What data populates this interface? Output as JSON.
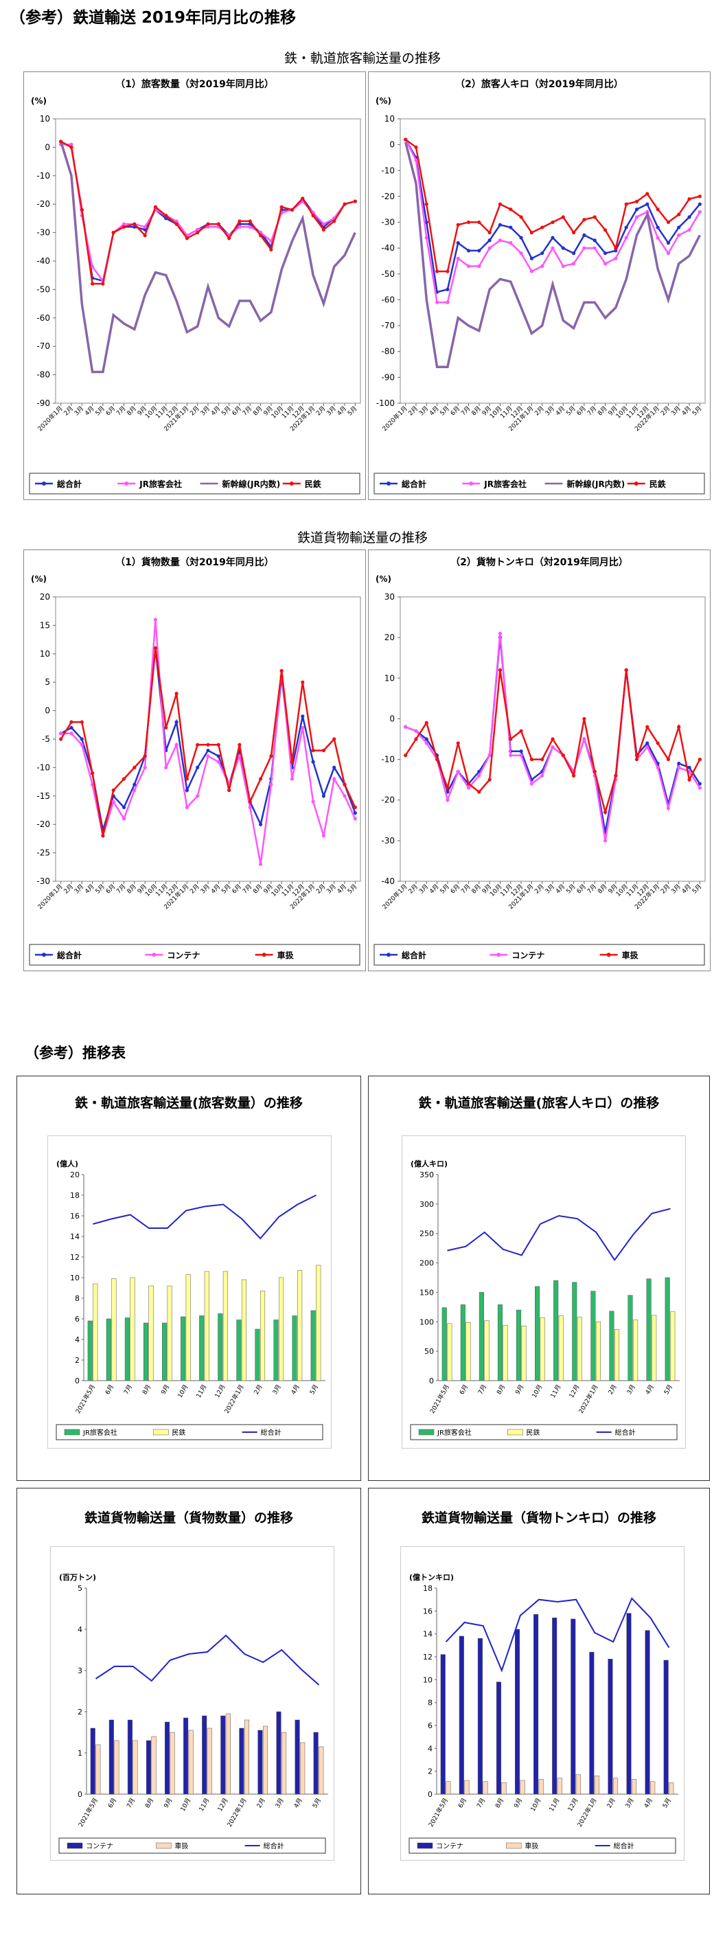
{
  "page_title": "（参考）鉄道輸送 2019年同月比の推移",
  "passenger_section_title": "鉄・軌道旅客輸送量の推移",
  "freight_section_title": "鉄道貨物輸送量の推移",
  "reference_title": "（参考）推移表",
  "colors": {
    "blue": "#2233cc",
    "pink": "#ff55ff",
    "purple": "#8866aa",
    "red": "#ee1111",
    "green": "#2eb86a",
    "cream": "#ffff99",
    "navy": "#2222aa",
    "peach": "#ffd9bb"
  },
  "chart_data": [
    {
      "id": "p1",
      "type": "line",
      "title": "（1）旅客数量（対2019年同月比）",
      "ylabel": "(%)",
      "ylim": [
        -90,
        10
      ],
      "ystep": 10,
      "categories": [
        "2020年1月",
        "2月",
        "3月",
        "4月",
        "5月",
        "6月",
        "7月",
        "8月",
        "9月",
        "10月",
        "11月",
        "12月",
        "2021年1月",
        "2月",
        "3月",
        "4月",
        "5月",
        "6月",
        "7月",
        "8月",
        "9月",
        "10月",
        "11月",
        "12月",
        "2022年1月",
        "2月",
        "3月",
        "4月",
        "5月"
      ],
      "series": [
        {
          "name": "総合計",
          "color": "#2233cc",
          "marker": true,
          "values": [
            2,
            0,
            -22,
            -46,
            -47,
            -30,
            -28,
            -28,
            -29,
            -22,
            -25,
            -27,
            -31,
            -29,
            -27,
            -27,
            -31,
            -27,
            -27,
            -30,
            -35,
            -22,
            -22,
            -18,
            -23,
            -28,
            -25,
            -20,
            -19
          ]
        },
        {
          "name": "JR旅客会社",
          "color": "#ff55ff",
          "marker": true,
          "values": [
            1,
            1,
            -24,
            -42,
            -47,
            -30,
            -27,
            -27,
            -28,
            -22,
            -24,
            -26,
            -31,
            -29,
            -28,
            -28,
            -31,
            -28,
            -28,
            -30,
            -33,
            -23,
            -22,
            -19,
            -23,
            -27,
            -25,
            -20,
            -19
          ]
        },
        {
          "name": "新幹線(JR内数)",
          "color": "#8866aa",
          "marker": false,
          "values": [
            2,
            -10,
            -55,
            -79,
            -79,
            -59,
            -62,
            -64,
            -52,
            -44,
            -45,
            -54,
            -65,
            -63,
            -49,
            -60,
            -63,
            -54,
            -54,
            -61,
            -58,
            -43,
            -33,
            -25,
            -45,
            -55,
            -42,
            -38,
            -30
          ]
        },
        {
          "name": "民鉄",
          "color": "#ee1111",
          "marker": true,
          "values": [
            2,
            0,
            -22,
            -48,
            -48,
            -30,
            -28,
            -27,
            -31,
            -21,
            -24,
            -27,
            -32,
            -30,
            -27,
            -27,
            -32,
            -26,
            -26,
            -31,
            -36,
            -21,
            -22,
            -18,
            -24,
            -29,
            -26,
            -20,
            -19
          ]
        }
      ]
    },
    {
      "id": "p2",
      "type": "line",
      "title": "（2）旅客人キロ（対2019年同月比）",
      "ylabel": "(%)",
      "ylim": [
        -100,
        10
      ],
      "ystep": 10,
      "categories": [
        "2020年1月",
        "2月",
        "3月",
        "4月",
        "5月",
        "6月",
        "7月",
        "8月",
        "9月",
        "10月",
        "11月",
        "12月",
        "2021年1月",
        "2月",
        "3月",
        "4月",
        "5月",
        "6月",
        "7月",
        "8月",
        "9月",
        "10月",
        "11月",
        "12月",
        "2022年1月",
        "2月",
        "3月",
        "4月",
        "5月"
      ],
      "series": [
        {
          "name": "総合計",
          "color": "#2233cc",
          "marker": true,
          "values": [
            2,
            -5,
            -30,
            -57,
            -56,
            -38,
            -41,
            -41,
            -37,
            -31,
            -32,
            -36,
            -44,
            -42,
            -36,
            -40,
            -42,
            -35,
            -37,
            -42,
            -41,
            -32,
            -25,
            -23,
            -32,
            -38,
            -32,
            -28,
            -23
          ]
        },
        {
          "name": "JR旅客会社",
          "color": "#ff55ff",
          "marker": true,
          "values": [
            2,
            -6,
            -36,
            -61,
            -61,
            -44,
            -47,
            -47,
            -40,
            -37,
            -38,
            -42,
            -49,
            -47,
            -40,
            -47,
            -46,
            -40,
            -40,
            -46,
            -44,
            -36,
            -28,
            -26,
            -36,
            -42,
            -35,
            -33,
            -26
          ]
        },
        {
          "name": "新幹線(JR内数)",
          "color": "#8866aa",
          "marker": false,
          "values": [
            1,
            -15,
            -60,
            -86,
            -86,
            -67,
            -70,
            -72,
            -56,
            -52,
            -53,
            -63,
            -73,
            -70,
            -54,
            -68,
            -71,
            -61,
            -61,
            -67,
            -63,
            -52,
            -35,
            -27,
            -48,
            -60,
            -46,
            -43,
            -35
          ]
        },
        {
          "name": "民鉄",
          "color": "#ee1111",
          "marker": true,
          "values": [
            2,
            -1,
            -23,
            -49,
            -49,
            -31,
            -30,
            -30,
            -34,
            -23,
            -25,
            -28,
            -34,
            -32,
            -30,
            -28,
            -34,
            -29,
            -28,
            -33,
            -40,
            -23,
            -22,
            -19,
            -25,
            -30,
            -27,
            -21,
            -20
          ]
        }
      ]
    },
    {
      "id": "f1",
      "type": "line",
      "title": "（1）貨物数量（対2019年同月比）",
      "ylabel": "(%)",
      "ylim": [
        -30,
        20
      ],
      "ystep": 5,
      "categories": [
        "2020年1月",
        "2月",
        "3月",
        "4月",
        "5月",
        "6月",
        "7月",
        "8月",
        "9月",
        "10月",
        "11月",
        "12月",
        "2021年1月",
        "2月",
        "3月",
        "4月",
        "5月",
        "6月",
        "7月",
        "8月",
        "9月",
        "10月",
        "11月",
        "12月",
        "2022年1月",
        "2月",
        "3月",
        "4月",
        "5月"
      ],
      "series": [
        {
          "name": "総合計",
          "color": "#2233cc",
          "marker": true,
          "values": [
            -4,
            -3,
            -5,
            -11,
            -21,
            -15,
            -17,
            -13,
            -8,
            11,
            -7,
            -2,
            -14,
            -10,
            -7,
            -8,
            -13,
            -7,
            -16,
            -20,
            -12,
            6,
            -10,
            -1,
            -9,
            -15,
            -10,
            -13,
            -18
          ]
        },
        {
          "name": "コンテナ",
          "color": "#ff55ff",
          "marker": true,
          "values": [
            -4,
            -4,
            -6,
            -13,
            -22,
            -16,
            -19,
            -14,
            -10,
            16,
            -10,
            -6,
            -17,
            -15,
            -8,
            -9,
            -13,
            -8,
            -17,
            -27,
            -13,
            7,
            -12,
            -3,
            -16,
            -22,
            -12,
            -15,
            -19
          ]
        },
        {
          "name": "車扱",
          "color": "#ee1111",
          "marker": true,
          "values": [
            -5,
            -2,
            -2,
            -11,
            -22,
            -14,
            -12,
            -10,
            -8,
            11,
            -3,
            3,
            -12,
            -6,
            -6,
            -6,
            -14,
            -6,
            -16,
            -12,
            -8,
            7,
            -9,
            5,
            -7,
            -7,
            -5,
            -13,
            -17
          ]
        }
      ]
    },
    {
      "id": "f2",
      "type": "line",
      "title": "（2）貨物トンキロ（対2019年同月比）",
      "ylabel": "(%)",
      "ylim": [
        -40,
        30
      ],
      "ystep": 10,
      "categories": [
        "2020年1月",
        "2月",
        "3月",
        "4月",
        "5月",
        "6月",
        "7月",
        "8月",
        "9月",
        "10月",
        "11月",
        "12月",
        "2021年1月",
        "2月",
        "3月",
        "4月",
        "5月",
        "6月",
        "7月",
        "8月",
        "9月",
        "10月",
        "11月",
        "12月",
        "2022年1月",
        "2月",
        "3月",
        "4月",
        "5月"
      ],
      "series": [
        {
          "name": "総合計",
          "color": "#2233cc",
          "marker": true,
          "values": [
            -2,
            -3,
            -5,
            -9,
            -18,
            -13,
            -16,
            -13,
            -9,
            20,
            -8,
            -8,
            -15,
            -13,
            -7,
            -9,
            -13,
            -5,
            -13,
            -28,
            -14,
            12,
            -9,
            -6,
            -11,
            -21,
            -11,
            -12,
            -16
          ]
        },
        {
          "name": "コンテナ",
          "color": "#ff55ff",
          "marker": true,
          "values": [
            -2,
            -3,
            -6,
            -10,
            -20,
            -13,
            -17,
            -14,
            -9,
            21,
            -9,
            -9,
            -16,
            -14,
            -7,
            -9,
            -13,
            -5,
            -14,
            -30,
            -15,
            12,
            -10,
            -7,
            -12,
            -22,
            -12,
            -13,
            -17
          ]
        },
        {
          "name": "車扱",
          "color": "#ee1111",
          "marker": true,
          "values": [
            -9,
            -5,
            -1,
            -10,
            -17,
            -6,
            -16,
            -18,
            -15,
            12,
            -5,
            -3,
            -10,
            -10,
            -5,
            -9,
            -14,
            0,
            -13,
            -23,
            -14,
            12,
            -10,
            -2,
            -6,
            -10,
            -2,
            -15,
            -10
          ]
        }
      ]
    },
    {
      "id": "r1",
      "type": "bar",
      "panel_title": "鉄・軌道旅客輸送量(旅客数量）の推移",
      "ylabel": "(億人)",
      "ylim": [
        0,
        20
      ],
      "ystep": 2,
      "categories": [
        "2021年5月",
        "6月",
        "7月",
        "8月",
        "9月",
        "10月",
        "11月",
        "12月",
        "2022年1月",
        "2月",
        "3月",
        "4月",
        "5月"
      ],
      "series": [
        {
          "name": "JR旅客会社",
          "kind": "bar",
          "color": "#2eb86a",
          "values": [
            5.8,
            6.0,
            6.1,
            5.6,
            5.6,
            6.2,
            6.3,
            6.5,
            5.9,
            5.0,
            5.9,
            6.3,
            6.8
          ]
        },
        {
          "name": "民鉄",
          "kind": "bar",
          "color": "#ffff99",
          "values": [
            9.4,
            9.9,
            10.0,
            9.2,
            9.2,
            10.3,
            10.6,
            10.6,
            9.8,
            8.7,
            10.0,
            10.7,
            11.2
          ]
        },
        {
          "name": "総合計",
          "kind": "line",
          "color": "#2222cc",
          "values": [
            15.2,
            15.7,
            16.1,
            14.8,
            14.8,
            16.5,
            16.9,
            17.1,
            15.7,
            13.8,
            15.9,
            17.1,
            18.0
          ]
        }
      ]
    },
    {
      "id": "r2",
      "type": "bar",
      "panel_title": "鉄・軌道旅客輸送量(旅客人キロ）の推移",
      "ylabel": "(億人キロ)",
      "ylim": [
        0,
        350
      ],
      "ystep": 50,
      "categories": [
        "2021年5月",
        "6月",
        "7月",
        "8月",
        "9月",
        "10月",
        "11月",
        "12月",
        "2022年1月",
        "2月",
        "3月",
        "4月",
        "5月"
      ],
      "series": [
        {
          "name": "JR旅客会社",
          "kind": "bar",
          "color": "#2eb86a",
          "values": [
            124,
            129,
            150,
            129,
            120,
            160,
            170,
            167,
            152,
            118,
            145,
            173,
            175
          ]
        },
        {
          "name": "民鉄",
          "kind": "bar",
          "color": "#ffff99",
          "values": [
            97,
            99,
            102,
            94,
            93,
            107,
            110,
            108,
            100,
            87,
            103,
            111,
            117
          ]
        },
        {
          "name": "総合計",
          "kind": "line",
          "color": "#2222cc",
          "values": [
            221,
            228,
            252,
            223,
            213,
            266,
            280,
            275,
            252,
            205,
            248,
            284,
            292
          ]
        }
      ]
    },
    {
      "id": "r3",
      "type": "bar",
      "panel_title": "鉄道貨物輸送量（貨物数量）の推移",
      "ylabel": "(百万トン)",
      "ylim": [
        0,
        5
      ],
      "ystep": 1,
      "categories": [
        "2021年5月",
        "6月",
        "7月",
        "8月",
        "9月",
        "10月",
        "11月",
        "12月",
        "2022年1月",
        "2月",
        "3月",
        "4月",
        "5月"
      ],
      "series": [
        {
          "name": "コンテナ",
          "kind": "bar",
          "color": "#2222aa",
          "values": [
            1.6,
            1.8,
            1.8,
            1.3,
            1.75,
            1.85,
            1.9,
            1.9,
            1.6,
            1.55,
            2.0,
            1.8,
            1.5
          ]
        },
        {
          "name": "車扱",
          "kind": "bar",
          "color": "#ffd9bb",
          "values": [
            1.2,
            1.3,
            1.3,
            1.4,
            1.5,
            1.55,
            1.6,
            1.95,
            1.8,
            1.65,
            1.5,
            1.25,
            1.15
          ]
        },
        {
          "name": "総合計",
          "kind": "line",
          "color": "#2222cc",
          "values": [
            2.8,
            3.1,
            3.1,
            2.75,
            3.25,
            3.4,
            3.45,
            3.85,
            3.4,
            3.2,
            3.5,
            3.05,
            2.65
          ]
        }
      ]
    },
    {
      "id": "r4",
      "type": "bar",
      "panel_title": "鉄道貨物輸送量（貨物トンキロ）の推移",
      "ylabel": "(億トンキロ)",
      "ylim": [
        0,
        18
      ],
      "ystep": 2,
      "categories": [
        "2021年5月",
        "6月",
        "7月",
        "8月",
        "9月",
        "10月",
        "11月",
        "12月",
        "2022年1月",
        "2月",
        "3月",
        "4月",
        "5月"
      ],
      "series": [
        {
          "name": "コンテナ",
          "kind": "bar",
          "color": "#2222aa",
          "values": [
            12.2,
            13.8,
            13.6,
            9.8,
            14.4,
            15.7,
            15.4,
            15.3,
            12.4,
            11.8,
            15.8,
            14.3,
            11.7
          ]
        },
        {
          "name": "車扱",
          "kind": "bar",
          "color": "#ffd9bb",
          "values": [
            1.1,
            1.2,
            1.1,
            1.0,
            1.2,
            1.3,
            1.4,
            1.7,
            1.6,
            1.4,
            1.3,
            1.1,
            1.0
          ]
        },
        {
          "name": "総合計",
          "kind": "line",
          "color": "#2222cc",
          "values": [
            13.3,
            15.0,
            14.7,
            10.8,
            15.6,
            17.0,
            16.8,
            17.0,
            14.1,
            13.3,
            17.1,
            15.4,
            12.8
          ]
        }
      ]
    }
  ]
}
